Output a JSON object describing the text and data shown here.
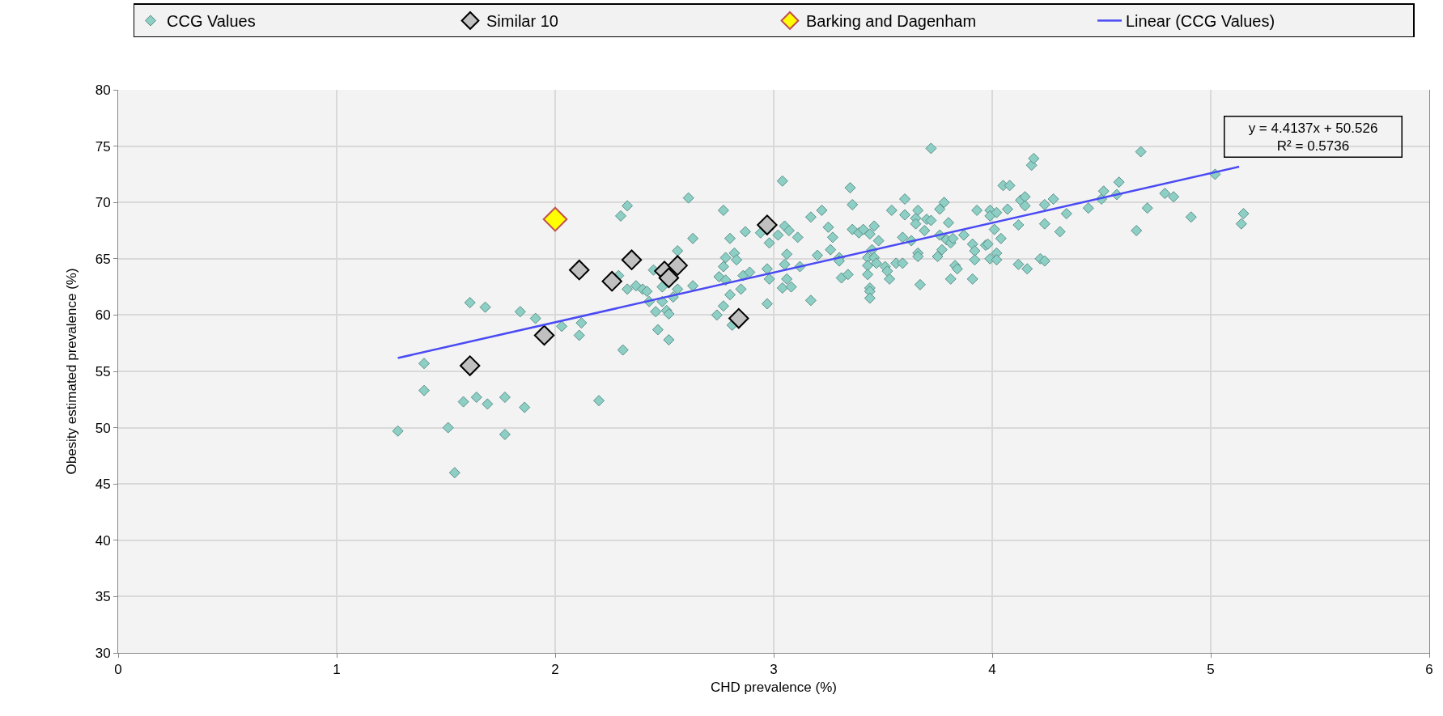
{
  "chart_data": {
    "type": "scatter",
    "xlabel": "CHD prevalence (%)",
    "ylabel": "Obesity estimated prevalence (%)",
    "xlim": [
      0,
      6
    ],
    "xticks": [
      0,
      1,
      2,
      3,
      4,
      5,
      6
    ],
    "ylim": [
      30,
      80
    ],
    "yticks": [
      30,
      35,
      40,
      45,
      50,
      55,
      60,
      65,
      70,
      75,
      80
    ],
    "grid": true,
    "legend": "top",
    "marker": "diamond",
    "annotations": [
      "y = 4.4137x + 50.526",
      "R² = 0.5736"
    ],
    "series": [
      {
        "name": "CCG Values",
        "color": "#8dcfc4",
        "x": [
          1.28,
          1.4,
          1.4,
          1.51,
          1.54,
          1.58,
          1.61,
          1.64,
          1.68,
          1.69,
          1.77,
          1.77,
          1.84,
          1.86,
          1.91,
          2.03,
          2.11,
          2.12,
          2.2,
          2.29,
          2.3,
          2.33,
          2.31,
          2.33,
          2.37,
          2.4,
          2.42,
          2.43,
          2.45,
          2.46,
          2.47,
          2.49,
          2.49,
          2.51,
          2.52,
          2.52,
          2.54,
          2.56,
          2.56,
          2.61,
          2.63,
          2.63,
          2.74,
          2.75,
          2.77,
          2.77,
          2.77,
          2.78,
          2.78,
          2.8,
          2.8,
          2.81,
          2.82,
          2.83,
          2.85,
          2.86,
          2.87,
          2.89,
          2.94,
          2.97,
          2.97,
          2.98,
          2.98,
          3.02,
          3.04,
          3.04,
          3.05,
          3.05,
          3.06,
          3.06,
          3.07,
          3.08,
          3.11,
          3.12,
          3.17,
          3.17,
          3.2,
          3.22,
          3.25,
          3.26,
          3.27,
          3.3,
          3.3,
          3.31,
          3.34,
          3.35,
          3.36,
          3.36,
          3.39,
          3.41,
          3.43,
          3.43,
          3.43,
          3.44,
          3.44,
          3.44,
          3.44,
          3.45,
          3.46,
          3.46,
          3.47,
          3.48,
          3.51,
          3.52,
          3.53,
          3.54,
          3.56,
          3.59,
          3.59,
          3.6,
          3.6,
          3.63,
          3.65,
          3.65,
          3.66,
          3.66,
          3.66,
          3.67,
          3.69,
          3.7,
          3.72,
          3.72,
          3.75,
          3.76,
          3.76,
          3.77,
          3.78,
          3.79,
          3.8,
          3.81,
          3.81,
          3.82,
          3.83,
          3.84,
          3.87,
          3.91,
          3.91,
          3.92,
          3.92,
          3.93,
          3.97,
          3.98,
          3.99,
          3.99,
          3.99,
          4.01,
          4.02,
          4.02,
          4.02,
          4.04,
          4.05,
          4.07,
          4.08,
          4.12,
          4.12,
          4.13,
          4.15,
          4.15,
          4.16,
          4.18,
          4.19,
          4.22,
          4.24,
          4.24,
          4.24,
          4.28,
          4.31,
          4.34,
          4.44,
          4.5,
          4.51,
          4.57,
          4.58,
          4.66,
          4.68,
          4.71,
          4.79,
          4.83,
          4.91,
          5.02,
          5.14,
          5.15
        ],
        "values": [
          49.7,
          55.7,
          53.3,
          50.0,
          46.0,
          52.3,
          61.1,
          52.7,
          60.7,
          52.1,
          52.7,
          49.4,
          60.3,
          51.8,
          59.7,
          59.0,
          58.2,
          59.3,
          52.4,
          63.5,
          68.8,
          69.7,
          56.9,
          62.3,
          62.6,
          62.3,
          62.1,
          61.2,
          64.0,
          60.3,
          58.7,
          62.5,
          61.2,
          60.4,
          60.1,
          57.8,
          61.6,
          62.3,
          65.7,
          70.4,
          66.8,
          62.6,
          60.0,
          63.4,
          69.3,
          64.3,
          60.8,
          65.1,
          63.1,
          66.8,
          61.8,
          59.1,
          65.5,
          64.9,
          62.3,
          63.5,
          67.4,
          63.8,
          67.3,
          64.1,
          61.0,
          66.4,
          63.2,
          67.1,
          71.9,
          62.4,
          67.9,
          64.5,
          65.4,
          63.2,
          67.5,
          62.5,
          66.9,
          64.3,
          68.7,
          61.3,
          65.3,
          69.3,
          67.8,
          65.8,
          66.9,
          65.1,
          64.8,
          63.3,
          63.6,
          71.3,
          69.8,
          67.6,
          67.3,
          67.6,
          65.1,
          64.4,
          63.6,
          67.2,
          62.4,
          62.1,
          61.5,
          65.8,
          67.9,
          65.1,
          64.6,
          66.6,
          64.3,
          63.9,
          63.2,
          69.3,
          64.6,
          66.9,
          64.6,
          70.3,
          68.9,
          66.6,
          68.6,
          68.1,
          69.3,
          65.5,
          65.2,
          62.7,
          67.5,
          68.5,
          68.4,
          74.8,
          65.2,
          69.4,
          67.1,
          65.8,
          70.0,
          66.7,
          68.2,
          66.4,
          63.2,
          66.8,
          64.4,
          64.1,
          67.1,
          66.3,
          63.2,
          65.7,
          64.9,
          69.3,
          66.2,
          66.3,
          69.3,
          68.8,
          65.0,
          67.6,
          69.1,
          65.5,
          64.9,
          66.8,
          71.5,
          69.4,
          71.5,
          68.0,
          64.5,
          70.2,
          70.5,
          69.7,
          64.1,
          73.3,
          73.9,
          65.0,
          69.8,
          68.1,
          64.8,
          70.3,
          67.4,
          69.0,
          69.5,
          70.3,
          71.0,
          70.7,
          71.8,
          67.5,
          74.5,
          69.5,
          70.8,
          70.5,
          68.7,
          72.5,
          68.1,
          69.0
        ]
      },
      {
        "name": "Similar 10",
        "color": "#c0c0c0",
        "x": [
          1.61,
          1.95,
          2.11,
          2.26,
          2.35,
          2.5,
          2.52,
          2.56,
          2.84,
          2.97
        ],
        "values": [
          55.5,
          58.2,
          64.0,
          63.0,
          64.9,
          63.9,
          63.3,
          64.4,
          59.7,
          68.0
        ]
      },
      {
        "name": "Barking and Dagenham",
        "color": "#ffff00",
        "x": [
          2.0
        ],
        "values": [
          68.5
        ]
      },
      {
        "name": "Linear (CCG Values)",
        "type": "line",
        "marker": "none",
        "color": "#4a4af4",
        "x": [
          1.28,
          5.13
        ],
        "values": [
          56.18,
          73.17
        ]
      }
    ]
  }
}
